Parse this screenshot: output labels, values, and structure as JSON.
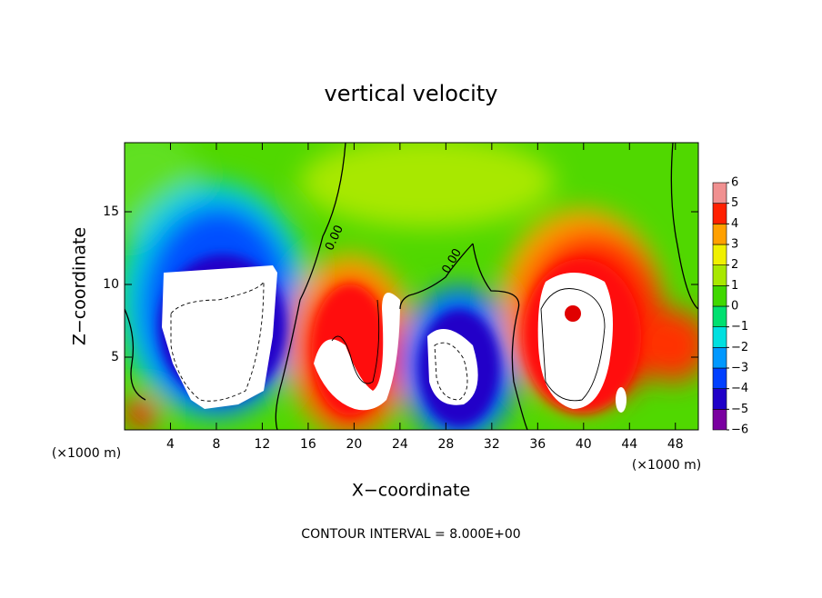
{
  "chart_data": {
    "type": "contour",
    "title": "vertical velocity",
    "xlabel": "X−coordinate",
    "ylabel": "Z−coordinate",
    "x_unit_left": "(×1000 m)",
    "x_unit_right": "(×1000 m)",
    "note": "CONTOUR INTERVAL = 8.000E+00",
    "contour_labels": [
      "0.00",
      "0.00"
    ],
    "xlim": [
      0,
      50
    ],
    "xticks": [
      4,
      8,
      12,
      16,
      20,
      24,
      28,
      32,
      36,
      40,
      44,
      48
    ],
    "ylim": [
      0,
      19.75
    ],
    "yticks": [
      5,
      10,
      15
    ],
    "colorbar": {
      "ticks": [
        {
          "value": -6,
          "label": "−6"
        },
        {
          "value": -5,
          "label": "−5"
        },
        {
          "value": -4,
          "label": "−4"
        },
        {
          "value": -3,
          "label": "−3"
        },
        {
          "value": -2,
          "label": "−2"
        },
        {
          "value": -1,
          "label": "−1"
        },
        0,
        1,
        2,
        3,
        4,
        5,
        6
      ],
      "colors": [
        "#7a00a0",
        "#2000c8",
        "#0040ff",
        "#0098ff",
        "#00e0e0",
        "#00e070",
        "#40d800",
        "#a8e800",
        "#f0f000",
        "#ffa000",
        "#ff2000",
        "#f09090"
      ]
    }
  }
}
